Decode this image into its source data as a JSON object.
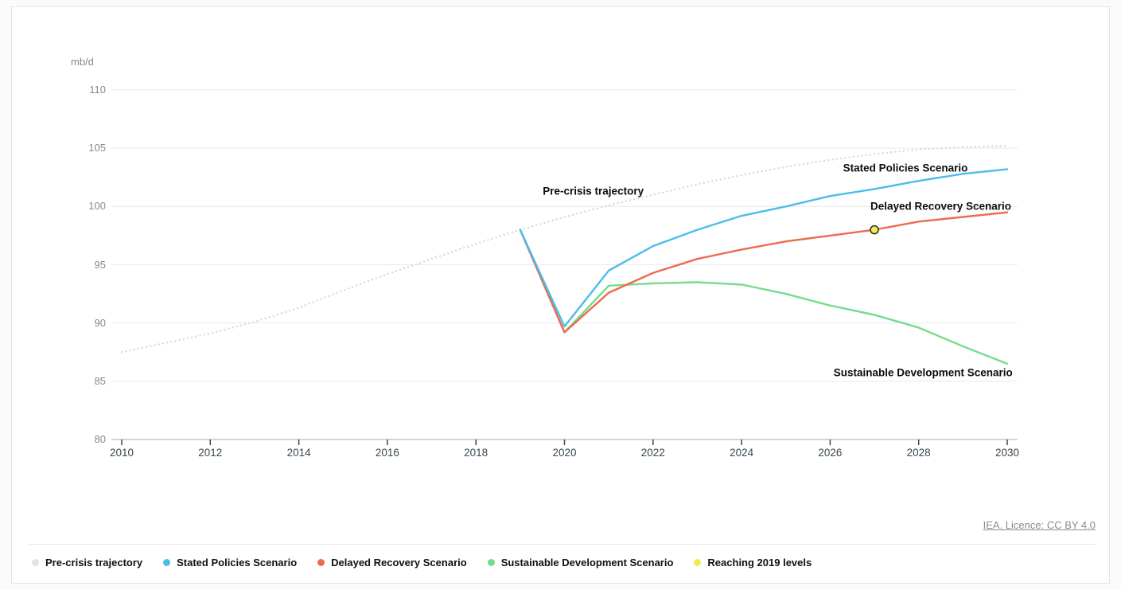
{
  "footer": {
    "licence_label": "IEA. Licence: CC BY 4.0"
  },
  "chart_data": {
    "type": "line",
    "unit_label": "mb/d",
    "xlabel": "",
    "ylabel": "mb/d",
    "xlim": [
      2010,
      2030
    ],
    "ylim": [
      80,
      110
    ],
    "x_ticks": [
      2010,
      2012,
      2014,
      2016,
      2018,
      2020,
      2022,
      2024,
      2026,
      2028,
      2030
    ],
    "y_ticks": [
      80,
      85,
      90,
      95,
      100,
      105,
      110
    ],
    "grid": true,
    "legend_position": "bottom",
    "series": [
      {
        "name": "Pre-crisis trajectory",
        "style": "dotted",
        "color": "#d9d9d9",
        "years": [
          2010,
          2011,
          2012,
          2013,
          2014,
          2015,
          2016,
          2017,
          2018,
          2019,
          2020,
          2021,
          2022,
          2023,
          2024,
          2025,
          2026,
          2027,
          2028,
          2029,
          2030
        ],
        "values": [
          87.5,
          88.3,
          89.1,
          90.1,
          91.3,
          92.8,
          94.2,
          95.5,
          96.8,
          98.0,
          99.1,
          100.1,
          101.0,
          101.9,
          102.7,
          103.4,
          104.0,
          104.5,
          104.9,
          105.1,
          105.2
        ]
      },
      {
        "name": "Sustainable Development Scenario",
        "style": "solid",
        "color": "#74dc8c",
        "years": [
          2019,
          2020,
          2021,
          2022,
          2023,
          2024,
          2025,
          2026,
          2027,
          2028,
          2029,
          2030
        ],
        "values": [
          98.0,
          89.2,
          93.2,
          93.4,
          93.5,
          93.3,
          92.5,
          91.5,
          90.7,
          89.6,
          88.0,
          86.5
        ]
      },
      {
        "name": "Delayed Recovery Scenario",
        "style": "solid",
        "color": "#ed6a4f",
        "years": [
          2019,
          2020,
          2021,
          2022,
          2023,
          2024,
          2025,
          2026,
          2027,
          2028,
          2029,
          2030
        ],
        "values": [
          98.0,
          89.2,
          92.6,
          94.3,
          95.5,
          96.3,
          97.0,
          97.5,
          98.0,
          98.7,
          99.1,
          99.5
        ]
      },
      {
        "name": "Stated Policies Scenario",
        "style": "solid",
        "color": "#4bbde9",
        "years": [
          2019,
          2020,
          2021,
          2022,
          2023,
          2024,
          2025,
          2026,
          2027,
          2028,
          2029,
          2030
        ],
        "values": [
          98.0,
          89.7,
          94.5,
          96.6,
          98.0,
          99.2,
          100.0,
          100.9,
          101.5,
          102.2,
          102.8,
          103.2
        ]
      }
    ],
    "marker": {
      "label": "Reaching 2019 levels",
      "x": 2027,
      "y": 98,
      "fill": "#f5e94f",
      "stroke": "#333333"
    },
    "annotations": [
      {
        "key": "pre-crisis-trajectory",
        "text": "Pre-crisis trajectory",
        "x": 2020.65,
        "y": 101.3
      },
      {
        "key": "stated-policies-scenario",
        "text": "Stated Policies Scenario",
        "x": 2027.7,
        "y": 103.3
      },
      {
        "key": "delayed-recovery-scenario",
        "text": "Delayed Recovery Scenario",
        "x": 2028.5,
        "y": 100.0
      },
      {
        "key": "sustainable-development-scenario",
        "text": "Sustainable Development Scenario",
        "x": 2028.1,
        "y": 85.75
      }
    ]
  },
  "legend": {
    "items": [
      {
        "label": "Pre-crisis trajectory",
        "color": "#e4e4e4"
      },
      {
        "label": "Stated Policies Scenario",
        "color": "#4bbde9"
      },
      {
        "label": "Delayed Recovery Scenario",
        "color": "#ed6a4f"
      },
      {
        "label": "Sustainable Development Scenario",
        "color": "#74dc8c"
      },
      {
        "label": "Reaching 2019 levels",
        "color": "#f5e94f"
      }
    ]
  }
}
